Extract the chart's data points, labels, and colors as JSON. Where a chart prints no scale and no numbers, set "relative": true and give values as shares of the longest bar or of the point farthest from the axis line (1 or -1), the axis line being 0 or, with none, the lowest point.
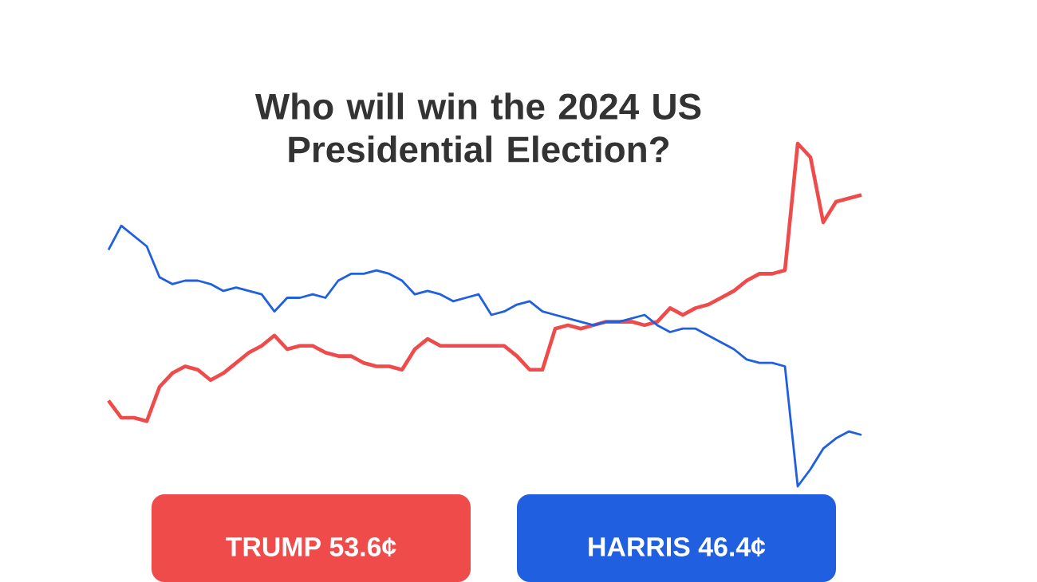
{
  "chart_data": {
    "type": "line",
    "title": "Who will win the 2024 US Presidential Election?",
    "relative": true,
    "categories": [
      null,
      null,
      null,
      null,
      null,
      null,
      null,
      null,
      null,
      null,
      null,
      null,
      null,
      null,
      null,
      null,
      null,
      null,
      null,
      null,
      null,
      null,
      null,
      null,
      null,
      null,
      null,
      null,
      null,
      null,
      null,
      null,
      null,
      null,
      null,
      null,
      null,
      null,
      null,
      null,
      null,
      null,
      null,
      null,
      null,
      null,
      null,
      null,
      null,
      null,
      null,
      null,
      null,
      null,
      null,
      null,
      null,
      null,
      null,
      null
    ],
    "series": [
      {
        "color": "#ef4b4b",
        "values": [
          0.25,
          0.2,
          0.2,
          0.19,
          0.29,
          0.33,
          0.35,
          0.34,
          0.31,
          0.33,
          0.36,
          0.39,
          0.41,
          0.44,
          0.4,
          0.41,
          0.41,
          0.39,
          0.38,
          0.38,
          0.36,
          0.35,
          0.35,
          0.34,
          0.4,
          0.43,
          0.41,
          0.41,
          0.41,
          0.41,
          0.41,
          0.41,
          0.38,
          0.34,
          0.34,
          0.46,
          0.47,
          0.46,
          0.47,
          0.48,
          0.48,
          0.48,
          0.47,
          0.48,
          0.52,
          0.5,
          0.52,
          0.53,
          0.55,
          0.57,
          0.6,
          0.62,
          0.62,
          0.63,
          1.0,
          0.96,
          0.77,
          0.83,
          0.84,
          0.85
        ]
      },
      {
        "color": "#1f5fe0",
        "values": [
          0.69,
          0.76,
          0.73,
          0.7,
          0.61,
          0.59,
          0.6,
          0.6,
          0.59,
          0.57,
          0.58,
          0.57,
          0.56,
          0.51,
          0.55,
          0.55,
          0.56,
          0.55,
          0.6,
          0.62,
          0.62,
          0.63,
          0.62,
          0.6,
          0.56,
          0.57,
          0.56,
          0.54,
          0.55,
          0.56,
          0.5,
          0.51,
          0.53,
          0.54,
          0.51,
          0.5,
          0.49,
          0.48,
          0.47,
          0.48,
          0.48,
          0.49,
          0.5,
          0.47,
          0.45,
          0.46,
          0.46,
          0.44,
          0.42,
          0.4,
          0.37,
          0.36,
          0.36,
          0.35,
          0.0,
          0.05,
          0.11,
          0.14,
          0.16,
          0.15
        ]
      }
    ],
    "annotations": [
      "TRUMP 53.6¢",
      "HARRIS 46.4¢"
    ],
    "line_style": "solid"
  }
}
